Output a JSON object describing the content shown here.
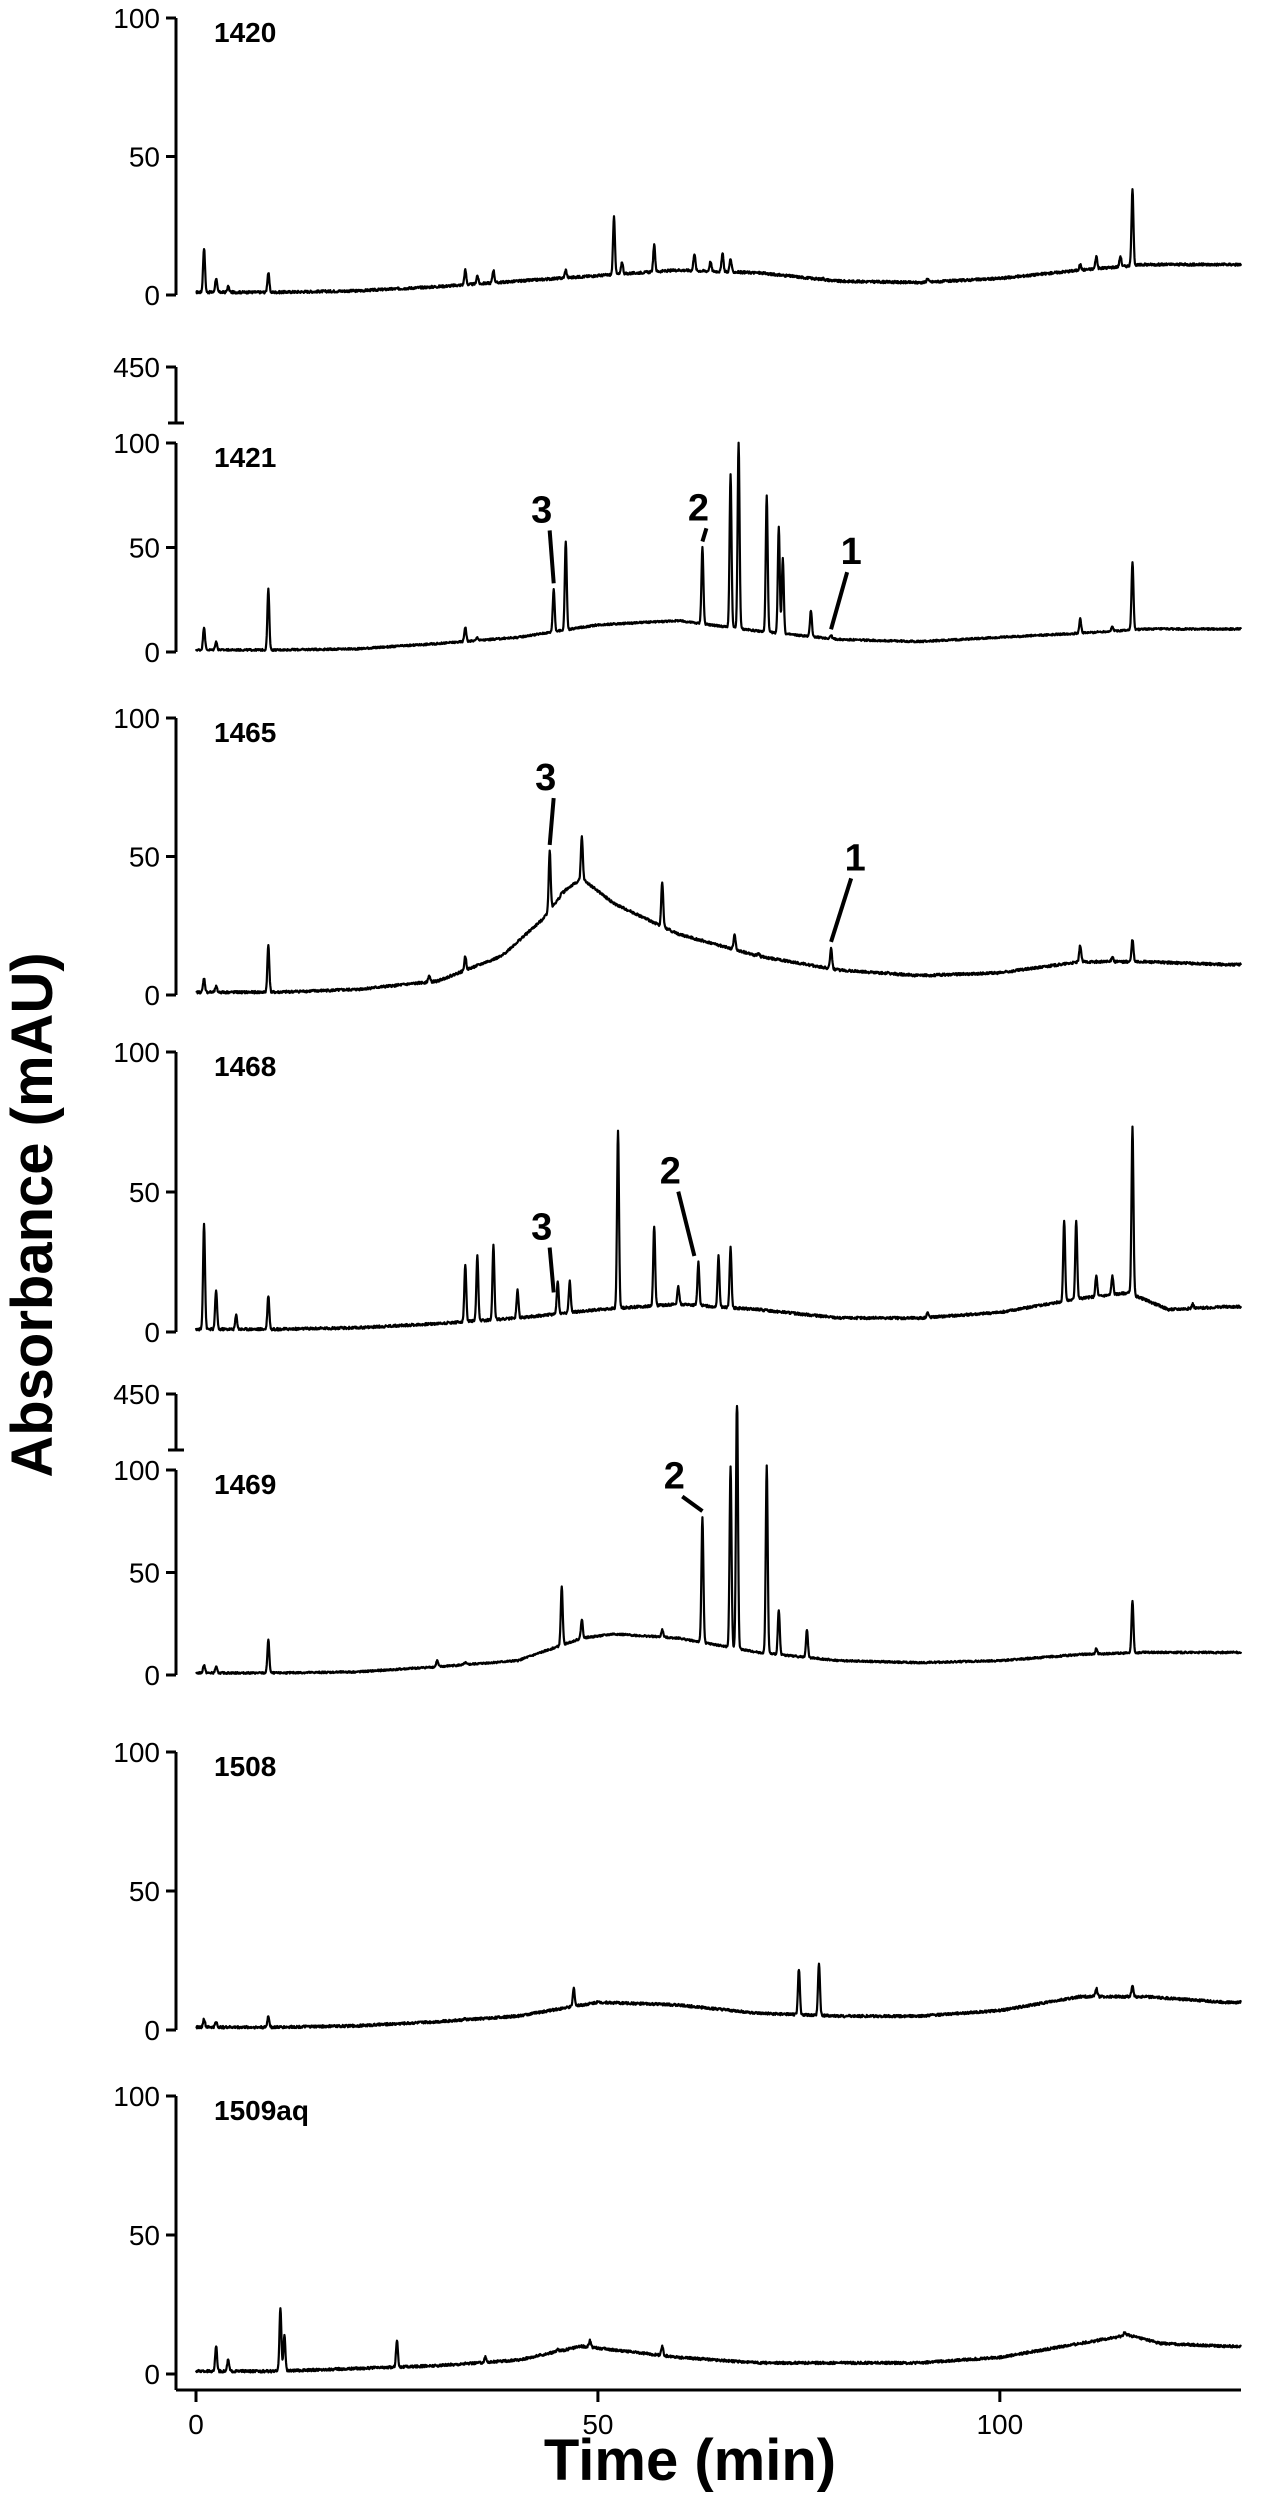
{
  "chart_data": {
    "type": "line",
    "xlabel": "Time (min)",
    "ylabel": "Absorbance (mAU)",
    "x_ticks": [
      0,
      50,
      100
    ],
    "xlim": [
      0,
      130
    ],
    "panels": [
      {
        "name": "1420",
        "ylim": [
          0,
          100
        ],
        "y_ticks": [
          0,
          50,
          100
        ],
        "baseline": [
          [
            0,
            1
          ],
          [
            10,
            1
          ],
          [
            20,
            1.5
          ],
          [
            30,
            3
          ],
          [
            40,
            5
          ],
          [
            50,
            7
          ],
          [
            60,
            9
          ],
          [
            70,
            8
          ],
          [
            80,
            5
          ],
          [
            90,
            4.5
          ],
          [
            100,
            6
          ],
          [
            110,
            9
          ],
          [
            118,
            11
          ],
          [
            128,
            11
          ]
        ],
        "peaks": [
          [
            1,
            17
          ],
          [
            2.5,
            6
          ],
          [
            4,
            3
          ],
          [
            9,
            8
          ],
          [
            33.5,
            9
          ],
          [
            35,
            7
          ],
          [
            37,
            9
          ],
          [
            40,
            5
          ],
          [
            46,
            9
          ],
          [
            52,
            28
          ],
          [
            53,
            12
          ],
          [
            57,
            18
          ],
          [
            61,
            8
          ],
          [
            62,
            15
          ],
          [
            64,
            12
          ],
          [
            65.5,
            15
          ],
          [
            66.5,
            13
          ],
          [
            78,
            6
          ],
          [
            91,
            6
          ],
          [
            110,
            11
          ],
          [
            112,
            14
          ],
          [
            115,
            14
          ],
          [
            116.5,
            38
          ]
        ],
        "annotations": []
      },
      {
        "name": "1421",
        "ylim": [
          0,
          100
        ],
        "y_ticks": [
          0,
          50,
          100
        ],
        "break_value": 450,
        "baseline": [
          [
            0,
            1
          ],
          [
            10,
            1
          ],
          [
            20,
            1.5
          ],
          [
            30,
            4
          ],
          [
            40,
            7
          ],
          [
            50,
            13
          ],
          [
            60,
            15
          ],
          [
            70,
            10
          ],
          [
            80,
            6
          ],
          [
            90,
            5
          ],
          [
            100,
            7
          ],
          [
            110,
            9
          ],
          [
            118,
            11
          ],
          [
            128,
            11
          ]
        ],
        "peaks": [
          [
            1,
            12
          ],
          [
            2.5,
            5
          ],
          [
            9,
            30
          ],
          [
            33.5,
            12
          ],
          [
            35,
            7
          ],
          [
            37,
            5
          ],
          [
            44.5,
            30
          ],
          [
            46,
            53
          ],
          [
            48,
            10
          ],
          [
            55,
            11
          ],
          [
            58,
            13
          ],
          [
            60,
            11
          ],
          [
            63,
            50
          ],
          [
            66.5,
            85
          ],
          [
            67.5,
            100
          ],
          [
            71,
            75
          ],
          [
            72.5,
            60
          ],
          [
            73,
            45
          ],
          [
            76.5,
            20
          ],
          [
            79,
            8
          ],
          [
            110,
            16
          ],
          [
            114,
            12
          ],
          [
            116.5,
            43
          ],
          [
            120,
            10
          ],
          [
            125,
            11
          ]
        ],
        "annotations": [
          {
            "label": "3",
            "x": 43,
            "y": 62,
            "px": 44.5,
            "py": 30
          },
          {
            "label": "2",
            "x": 62.5,
            "y": 63,
            "px": 63,
            "py": 50
          },
          {
            "label": "1",
            "x": 81.5,
            "y": 42,
            "px": 79,
            "py": 8
          }
        ]
      },
      {
        "name": "1465",
        "ylim": [
          0,
          100
        ],
        "y_ticks": [
          0,
          50,
          100
        ],
        "baseline": [
          [
            0,
            1
          ],
          [
            10,
            1
          ],
          [
            20,
            2
          ],
          [
            30,
            5
          ],
          [
            38,
            14
          ],
          [
            43,
            27
          ],
          [
            46,
            38
          ],
          [
            48,
            42
          ],
          [
            52,
            33
          ],
          [
            60,
            22
          ],
          [
            70,
            14
          ],
          [
            80,
            9
          ],
          [
            90,
            7
          ],
          [
            100,
            8
          ],
          [
            110,
            12
          ],
          [
            118,
            12
          ],
          [
            128,
            11
          ]
        ],
        "peaks": [
          [
            1,
            6
          ],
          [
            2.5,
            3
          ],
          [
            9,
            18
          ],
          [
            29,
            7
          ],
          [
            33.5,
            14
          ],
          [
            44,
            52
          ],
          [
            45.5,
            37
          ],
          [
            48,
            57
          ],
          [
            58,
            41
          ],
          [
            61,
            19
          ],
          [
            65,
            17
          ],
          [
            67,
            22
          ],
          [
            70,
            15
          ],
          [
            72,
            12
          ],
          [
            79,
            17
          ],
          [
            86,
            8
          ],
          [
            91,
            7
          ],
          [
            110,
            18
          ],
          [
            114,
            14
          ],
          [
            116.5,
            20
          ]
        ],
        "annotations": [
          {
            "label": "3",
            "x": 43.5,
            "y": 74,
            "px": 44,
            "py": 52
          },
          {
            "label": "1",
            "x": 82,
            "y": 45,
            "px": 79,
            "py": 17
          }
        ]
      },
      {
        "name": "1468",
        "ylim": [
          0,
          100
        ],
        "y_ticks": [
          0,
          50,
          100
        ],
        "baseline": [
          [
            0,
            1
          ],
          [
            10,
            1
          ],
          [
            20,
            1.5
          ],
          [
            30,
            3
          ],
          [
            40,
            5
          ],
          [
            50,
            8
          ],
          [
            60,
            10
          ],
          [
            70,
            8
          ],
          [
            80,
            5
          ],
          [
            90,
            5
          ],
          [
            100,
            7
          ],
          [
            110,
            12
          ],
          [
            116,
            14
          ],
          [
            121,
            8
          ],
          [
            128,
            9
          ]
        ],
        "peaks": [
          [
            1,
            39
          ],
          [
            2.5,
            15
          ],
          [
            5,
            6
          ],
          [
            9,
            13
          ],
          [
            33.5,
            24
          ],
          [
            35,
            27
          ],
          [
            37,
            31
          ],
          [
            40,
            15
          ],
          [
            45,
            18
          ],
          [
            46.5,
            18
          ],
          [
            52.5,
            72
          ],
          [
            57,
            38
          ],
          [
            60,
            16
          ],
          [
            62.5,
            25
          ],
          [
            65,
            27
          ],
          [
            66.5,
            30
          ],
          [
            91,
            7
          ],
          [
            108,
            40
          ],
          [
            109.5,
            40
          ],
          [
            112,
            20
          ],
          [
            114,
            20
          ],
          [
            116.5,
            73
          ],
          [
            124,
            10
          ]
        ],
        "annotations": [
          {
            "label": "3",
            "x": 43,
            "y": 33,
            "px": 44.5,
            "py": 12
          },
          {
            "label": "2",
            "x": 59,
            "y": 53,
            "px": 62,
            "py": 25
          }
        ]
      },
      {
        "name": "1469",
        "ylim": [
          0,
          100
        ],
        "y_ticks": [
          0,
          50,
          100
        ],
        "break_value": 450,
        "baseline": [
          [
            0,
            1
          ],
          [
            10,
            1
          ],
          [
            20,
            1.5
          ],
          [
            30,
            4
          ],
          [
            40,
            7
          ],
          [
            48,
            18
          ],
          [
            52,
            20
          ],
          [
            60,
            18
          ],
          [
            70,
            11
          ],
          [
            80,
            7
          ],
          [
            90,
            6
          ],
          [
            100,
            7
          ],
          [
            110,
            10
          ],
          [
            118,
            11
          ],
          [
            128,
            11
          ]
        ],
        "peaks": [
          [
            1,
            5
          ],
          [
            2.5,
            4
          ],
          [
            9,
            17
          ],
          [
            30,
            7
          ],
          [
            33.5,
            6
          ],
          [
            45.5,
            43
          ],
          [
            48,
            27
          ],
          [
            58,
            22
          ],
          [
            63,
            77
          ],
          [
            66.5,
            102
          ],
          [
            67.3,
            138
          ],
          [
            71,
            102
          ],
          [
            72.5,
            32
          ],
          [
            76,
            22
          ],
          [
            112,
            13
          ],
          [
            116.5,
            36
          ]
        ],
        "annotations": [
          {
            "label": "2",
            "x": 59.5,
            "y": 91,
            "px": 63,
            "py": 77
          }
        ]
      },
      {
        "name": "1508",
        "ylim": [
          0,
          100
        ],
        "y_ticks": [
          0,
          50,
          100
        ],
        "baseline": [
          [
            0,
            1
          ],
          [
            10,
            1
          ],
          [
            20,
            1.5
          ],
          [
            30,
            3
          ],
          [
            40,
            5
          ],
          [
            50,
            10
          ],
          [
            60,
            9
          ],
          [
            70,
            6
          ],
          [
            80,
            5
          ],
          [
            90,
            5
          ],
          [
            100,
            7
          ],
          [
            110,
            12
          ],
          [
            118,
            12
          ],
          [
            128,
            10
          ]
        ],
        "peaks": [
          [
            1,
            4
          ],
          [
            2.5,
            3
          ],
          [
            9,
            5
          ],
          [
            33.5,
            4
          ],
          [
            42,
            6
          ],
          [
            47,
            15
          ],
          [
            55,
            8
          ],
          [
            56,
            8
          ],
          [
            75,
            22
          ],
          [
            77.5,
            24
          ],
          [
            112,
            15
          ],
          [
            116.5,
            16
          ]
        ],
        "annotations": []
      },
      {
        "name": "1509aq",
        "ylim": [
          0,
          100
        ],
        "y_ticks": [
          0,
          50,
          100
        ],
        "baseline": [
          [
            0,
            1
          ],
          [
            10,
            1
          ],
          [
            20,
            2
          ],
          [
            30,
            3
          ],
          [
            40,
            5
          ],
          [
            48,
            10
          ],
          [
            60,
            6
          ],
          [
            70,
            4
          ],
          [
            80,
            4
          ],
          [
            90,
            4
          ],
          [
            100,
            6
          ],
          [
            110,
            11
          ],
          [
            116,
            14
          ],
          [
            120,
            11
          ],
          [
            128,
            10
          ]
        ],
        "peaks": [
          [
            2.5,
            10
          ],
          [
            4,
            5
          ],
          [
            10.5,
            24
          ],
          [
            11,
            14
          ],
          [
            25,
            12
          ],
          [
            36,
            6
          ],
          [
            45,
            9
          ],
          [
            49,
            12
          ],
          [
            58,
            10
          ],
          [
            115.5,
            15
          ]
        ],
        "annotations": []
      }
    ]
  }
}
